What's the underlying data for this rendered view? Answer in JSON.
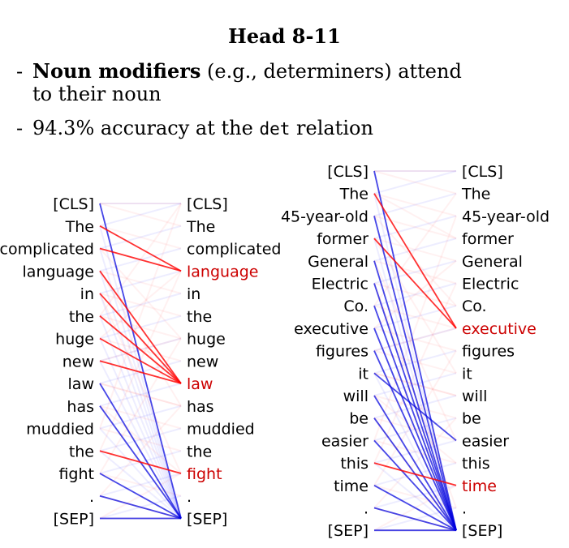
{
  "title": "Head 8-11",
  "bullets": [
    {
      "strong": "Noun modifiers",
      "rest_line1": " (e.g., determiners) attend",
      "rest_line2": "to their noun"
    },
    {
      "pre": "94.3% accuracy at the ",
      "code": "det",
      "post": " relation"
    }
  ],
  "colors": {
    "highlight": "#cc0000",
    "attention_strong": "#0000dd",
    "attention_red": "#ff0000",
    "text": "#000000"
  },
  "diagrams": [
    {
      "tokens": [
        "[CLS]",
        "The",
        "complicated",
        "language",
        "in",
        "the",
        "huge",
        "new",
        "law",
        "has",
        "muddied",
        "the",
        "fight",
        ".",
        "[SEP]"
      ],
      "highlighted_targets": [
        3,
        8,
        12
      ],
      "strong_edges": [
        {
          "from": 0,
          "to": 14,
          "color": "blue"
        },
        {
          "from": 1,
          "to": 3,
          "color": "red"
        },
        {
          "from": 2,
          "to": 3,
          "color": "red"
        },
        {
          "from": 3,
          "to": 8,
          "color": "red"
        },
        {
          "from": 4,
          "to": 8,
          "color": "red"
        },
        {
          "from": 5,
          "to": 8,
          "color": "red"
        },
        {
          "from": 6,
          "to": 8,
          "color": "red"
        },
        {
          "from": 7,
          "to": 8,
          "color": "red"
        },
        {
          "from": 8,
          "to": 14,
          "color": "blue"
        },
        {
          "from": 9,
          "to": 14,
          "color": "blue"
        },
        {
          "from": 11,
          "to": 12,
          "color": "red"
        },
        {
          "from": 12,
          "to": 14,
          "color": "blue"
        },
        {
          "from": 13,
          "to": 14,
          "color": "blue"
        },
        {
          "from": 14,
          "to": 14,
          "color": "blue"
        }
      ]
    },
    {
      "tokens": [
        "[CLS]",
        "The",
        "45-year-old",
        "former",
        "General",
        "Electric",
        "Co.",
        "executive",
        "figures",
        "it",
        "will",
        "be",
        "easier",
        "this",
        "time",
        ".",
        "[SEP]"
      ],
      "highlighted_targets": [
        7,
        14
      ],
      "strong_edges": [
        {
          "from": 0,
          "to": 16,
          "color": "blue"
        },
        {
          "from": 1,
          "to": 7,
          "color": "red"
        },
        {
          "from": 3,
          "to": 7,
          "color": "red"
        },
        {
          "from": 2,
          "to": 16,
          "color": "blue"
        },
        {
          "from": 4,
          "to": 16,
          "color": "blue"
        },
        {
          "from": 5,
          "to": 16,
          "color": "blue"
        },
        {
          "from": 6,
          "to": 16,
          "color": "blue"
        },
        {
          "from": 7,
          "to": 16,
          "color": "blue"
        },
        {
          "from": 8,
          "to": 16,
          "color": "blue"
        },
        {
          "from": 9,
          "to": 12,
          "color": "blue"
        },
        {
          "from": 10,
          "to": 16,
          "color": "blue"
        },
        {
          "from": 11,
          "to": 16,
          "color": "blue"
        },
        {
          "from": 12,
          "to": 16,
          "color": "blue"
        },
        {
          "from": 13,
          "to": 14,
          "color": "red"
        },
        {
          "from": 14,
          "to": 16,
          "color": "blue"
        },
        {
          "from": 15,
          "to": 16,
          "color": "blue"
        },
        {
          "from": 16,
          "to": 16,
          "color": "blue"
        }
      ]
    }
  ]
}
